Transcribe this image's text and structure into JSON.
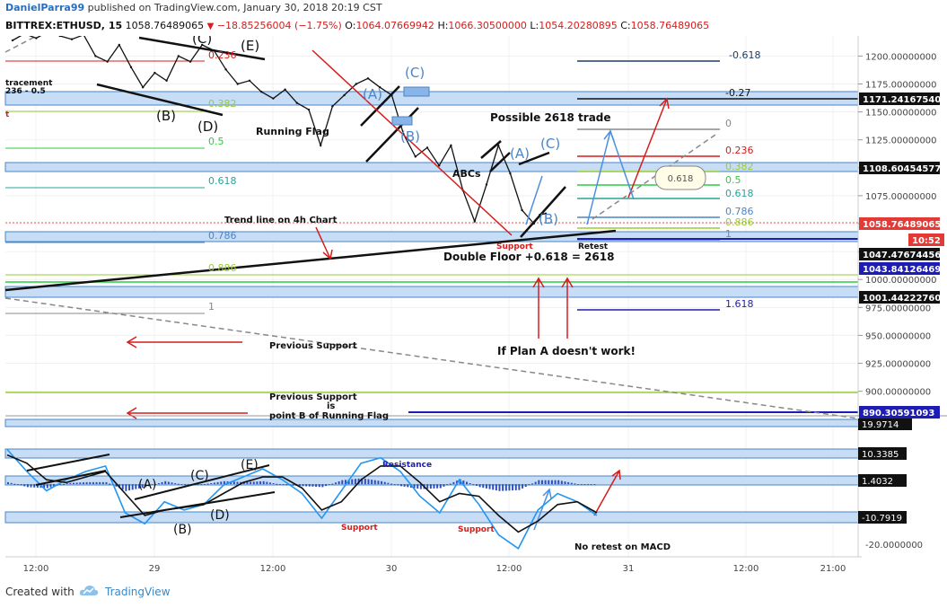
{
  "header": {
    "user": "DanielParra99",
    "published": "published on TradingView.com, January 30, 2018 20:19 CST",
    "symbol": "BITTREX:ETHUSD, 15",
    "last": "1058.76489065",
    "change": "−18.85256004 (−1.75%)",
    "open_label": "O:",
    "open": "1064.07669942",
    "high_label": "H:",
    "high": "1066.30500000",
    "low_label": "L:",
    "low": "1054.20280895",
    "close_label": "C:",
    "close": "1058.76489065"
  },
  "footer": {
    "created_with": "Created with",
    "brand": "TradingView"
  },
  "colors": {
    "price_line": "#111111",
    "osc_blue": "#2196f3",
    "osc_black": "#111111",
    "zone_fill": "#c7dcf5",
    "zone_edge": "#4a86c8",
    "red": "#d81c1c",
    "green": "#2ecc40",
    "teal": "#26a69a",
    "navy": "#1d1db5",
    "gray": "#888888",
    "lime": "#9acd32"
  },
  "chart_data": [
    {
      "type": "line",
      "title": "BITTREX:ETHUSD, 15",
      "x_ticks": [
        "12:00",
        "29",
        "12:00",
        "30",
        "12:00",
        "31",
        "12:00",
        "21:00"
      ],
      "y_ticks": [
        1200,
        1175,
        1150,
        1125,
        1100,
        1075,
        1050,
        1025,
        1000,
        975,
        950,
        925,
        900
      ],
      "y_tick_labels": [
        "1200.00000000",
        "1175.00000000",
        "1150.00000000",
        "1125.00000000",
        "1100.00000000",
        "1075.00000000",
        "1050.00000000",
        "1025.00000000",
        "1000.00000000",
        "975.00000000",
        "950.00000000",
        "925.00000000",
        "900.00000000"
      ],
      "ylim": [
        878,
        1218
      ],
      "series": [
        {
          "name": "ETHUSD",
          "x": [
            0,
            0.1,
            0.2,
            0.3,
            0.4,
            0.5,
            0.6,
            0.7,
            0.8,
            0.9,
            1.0,
            1.1,
            1.2,
            1.3,
            1.4,
            1.5,
            1.6,
            1.7,
            1.8,
            1.9,
            2.0,
            2.1,
            2.2,
            2.3,
            2.4,
            2.5,
            2.6,
            2.7,
            2.8,
            2.9,
            3.0,
            3.1,
            3.2,
            3.3,
            3.4,
            3.5,
            3.6,
            3.7,
            3.8,
            3.9,
            4.0,
            4.1,
            4.2,
            4.3,
            4.4,
            4.45,
            4.5
          ],
          "values": [
            1214,
            1220,
            1216,
            1222,
            1218,
            1215,
            1219,
            1200,
            1195,
            1210,
            1190,
            1172,
            1185,
            1178,
            1200,
            1195,
            1210,
            1205,
            1188,
            1175,
            1178,
            1168,
            1162,
            1170,
            1158,
            1152,
            1120,
            1155,
            1165,
            1175,
            1180,
            1172,
            1165,
            1130,
            1110,
            1118,
            1102,
            1120,
            1080,
            1052,
            1085,
            1120,
            1095,
            1062,
            1050,
            1058,
            1059
          ]
        }
      ],
      "price_labels": [
        {
          "value": "1171.24167540",
          "bg": "#111111",
          "fg": "#ffffff"
        },
        {
          "value": "1108.60454577",
          "bg": "#111111",
          "fg": "#ffffff"
        },
        {
          "value": "1058.76489065",
          "bg": "#e53935",
          "fg": "#ffffff"
        },
        {
          "value": "10:52",
          "bg": "#e53935",
          "fg": "#ffffff"
        },
        {
          "value": "1047.47674456",
          "bg": "#111111",
          "fg": "#ffffff"
        },
        {
          "value": "1043.84126469",
          "bg": "#1d1db5",
          "fg": "#ffffff"
        },
        {
          "value": "1001.44222760",
          "bg": "#111111",
          "fg": "#ffffff"
        },
        {
          "value": "890.30591093",
          "bg": "#1d1db5",
          "fg": "#ffffff"
        }
      ],
      "fib_left": [
        {
          "label": "tracement",
          "color": "#111111"
        },
        {
          "label": "236 - 0.5",
          "color": "#111111"
        },
        {
          "label": "t",
          "color": "#d81c1c"
        },
        {
          "label": "0.236",
          "color": "#d81c1c"
        },
        {
          "label": "0.382",
          "color": "#9acd32"
        },
        {
          "label": "0.5",
          "color": "#2ecc40"
        },
        {
          "label": "0.618",
          "color": "#26a69a"
        },
        {
          "label": "0.786",
          "color": "#4a86c8"
        },
        {
          "label": "0.886",
          "color": "#9acd32"
        },
        {
          "label": "1",
          "color": "#888888"
        }
      ],
      "fib_right": [
        {
          "label": "-0.618",
          "color": "#1d3d6b"
        },
        {
          "label": "-0.27",
          "color": "#111111"
        },
        {
          "label": "0",
          "color": "#888888"
        },
        {
          "label": "0.236",
          "color": "#d81c1c"
        },
        {
          "label": "0.382",
          "color": "#9acd32"
        },
        {
          "label": "0.5",
          "color": "#2ecc40"
        },
        {
          "label": "0.618",
          "color": "#26a69a"
        },
        {
          "label": "0.786",
          "color": "#4a86c8"
        },
        {
          "label": "0.886",
          "color": "#9acd32"
        },
        {
          "label": "1",
          "color": "#888888"
        },
        {
          "label": "1.618",
          "color": "#1d1db5"
        }
      ],
      "annotations": {
        "running_flag": "Running Flag",
        "abc": "ABCs",
        "possible_trade": "Possible 2618 trade",
        "trend_line": "Trend line on 4h Chart",
        "double_floor": "Double Floor +0.618 = 2618",
        "support": "Support",
        "retest": "Retest",
        "plan_a": "If Plan A doesn't work!",
        "prev_support": "Previous Support",
        "prev_support2_l1": "Previous Support",
        "prev_support2_l2": "is",
        "prev_support2_l3": "point B of Running Flag",
        "bubble": "0.618",
        "wave_A": "(A)",
        "wave_B": "(B)",
        "wave_C": "(C)",
        "wave_D": "(D)",
        "wave_E": "(E)"
      }
    },
    {
      "type": "line",
      "title": "MACD",
      "y_ticks": [
        10.3385,
        1.4032,
        -10.7919,
        -20
      ],
      "y_tick_labels": [
        "10.3385",
        "1.4032",
        "-10.7919",
        "-20.0000000"
      ],
      "ylim": [
        -25,
        22
      ],
      "top_label": "19.9714",
      "series": [
        {
          "name": "MACD",
          "x": [
            0,
            0.15,
            0.3,
            0.45,
            0.6,
            0.75,
            0.9,
            1.05,
            1.2,
            1.35,
            1.5,
            1.65,
            1.8,
            1.95,
            2.1,
            2.25,
            2.4,
            2.55,
            2.7,
            2.85,
            3.0,
            3.15,
            3.3,
            3.45,
            3.6,
            3.75,
            3.9,
            4.05,
            4.2,
            4.35,
            4.5
          ],
          "values": [
            14,
            6,
            -1,
            3,
            6,
            8,
            -9,
            -13,
            -5,
            -8,
            -6,
            1,
            4,
            7,
            3,
            -2,
            -11,
            -1,
            9,
            11,
            6,
            -3,
            -9,
            3,
            -6,
            -17,
            -22,
            -8,
            -2,
            -5,
            -10
          ]
        },
        {
          "name": "Signal",
          "x": [
            0,
            0.15,
            0.3,
            0.45,
            0.6,
            0.75,
            0.9,
            1.05,
            1.2,
            1.35,
            1.5,
            1.65,
            1.8,
            1.95,
            2.1,
            2.25,
            2.4,
            2.55,
            2.7,
            2.85,
            3.0,
            3.15,
            3.3,
            3.45,
            3.6,
            3.75,
            3.9,
            4.05,
            4.2,
            4.35,
            4.5
          ],
          "values": [
            12,
            9,
            3,
            2,
            4,
            6,
            -2,
            -10,
            -8,
            -7,
            -6,
            -2,
            2,
            4,
            4,
            0,
            -8,
            -5,
            3,
            8,
            8,
            2,
            -5,
            -2,
            -3,
            -10,
            -16,
            -12,
            -6,
            -5,
            -9
          ]
        }
      ],
      "annotations": {
        "resistance": "Resistance",
        "support_a": "Support",
        "support_b": "Support",
        "no_retest": "No retest on MACD",
        "wave_A": "(A)",
        "wave_B": "(B)",
        "wave_C": "(C)",
        "wave_D": "(D)",
        "wave_E": "(E)"
      }
    }
  ]
}
